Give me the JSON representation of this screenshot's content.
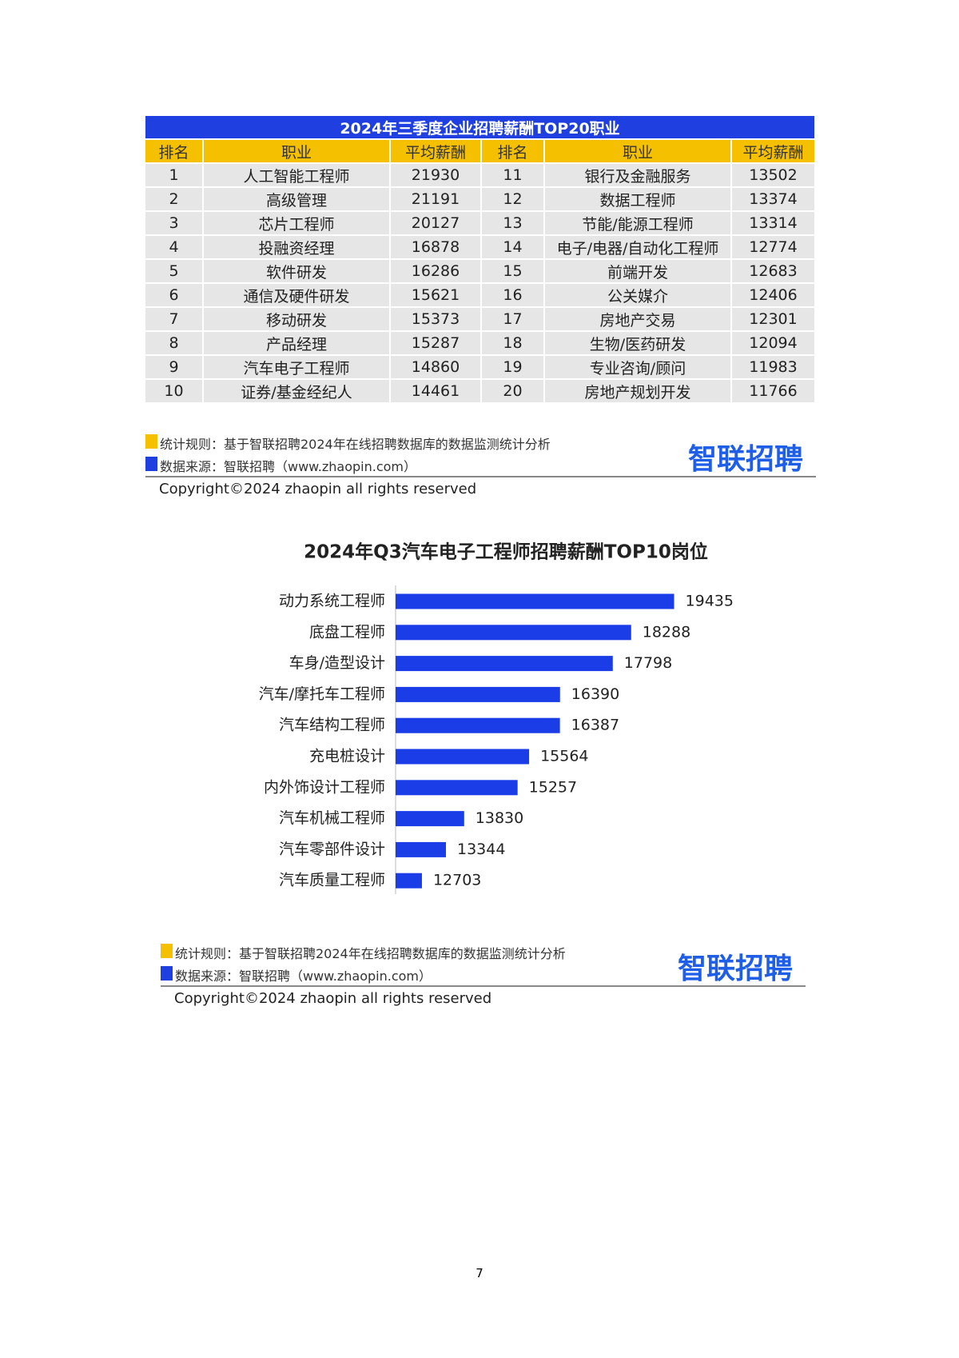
{
  "table": {
    "title": "2024年三季度企业招聘薪酬TOP20职业",
    "header": [
      "排名",
      "职业",
      "平均薪酬",
      "排名",
      "职业",
      "平均薪酬"
    ],
    "rows": [
      [
        1,
        "人工智能工程师",
        21930,
        11,
        "银行及金融服务",
        13502
      ],
      [
        2,
        "高级管理",
        21191,
        12,
        "数据工程师",
        13374
      ],
      [
        3,
        "芯片工程师",
        20127,
        13,
        "节能/能源工程师",
        13314
      ],
      [
        4,
        "投融资经理",
        16878,
        14,
        "电子/电器/自动化工程师",
        12774
      ],
      [
        5,
        "软件研发",
        16286,
        15,
        "前端开发",
        12683
      ],
      [
        6,
        "通信及硬件研发",
        15621,
        16,
        "公关媒介",
        12406
      ],
      [
        7,
        "移动研发",
        15373,
        17,
        "房地产交易",
        12301
      ],
      [
        8,
        "产品经理",
        15287,
        18,
        "生物/医药研发",
        12094
      ],
      [
        9,
        "汽车电子工程师",
        14860,
        19,
        "专业咨询/顾问",
        11983
      ],
      [
        10,
        "证券/基金经纪人",
        14461,
        20,
        "房地产规划开发",
        11766
      ]
    ]
  },
  "footers": [
    {
      "rule": "统计规则：基于智联招聘2024年在线招聘数据库的数据监测统计分析",
      "source": "数据来源：智联招聘（www.zhaopin.com）",
      "logo": "智联招聘",
      "copyright": "Copyright©2024 zhaopin all rights reserved"
    },
    {
      "rule": "统计规则：基于智联招聘2024年在线招聘数据库的数据监测统计分析",
      "source": "数据来源：智联招聘（www.zhaopin.com）",
      "logo": "智联招聘",
      "copyright": "Copyright©2024 zhaopin all rights reserved"
    }
  ],
  "chart_data": {
    "type": "bar",
    "orientation": "horizontal",
    "title": "2024年Q3汽车电子工程师招聘薪酬TOP10岗位",
    "categories": [
      "动力系统工程师",
      "底盘工程师",
      "车身/造型设计",
      "汽车/摩托车工程师",
      "汽车结构工程师",
      "充电桩设计",
      "内外饰设计工程师",
      "汽车机械工程师",
      "汽车零部件设计",
      "汽车质量工程师"
    ],
    "values": [
      19435,
      18288,
      17798,
      16390,
      16387,
      15564,
      15257,
      13830,
      13344,
      12703
    ],
    "color": "#1a3de8",
    "xlim": [
      12000,
      20000
    ]
  },
  "page_number": "7"
}
